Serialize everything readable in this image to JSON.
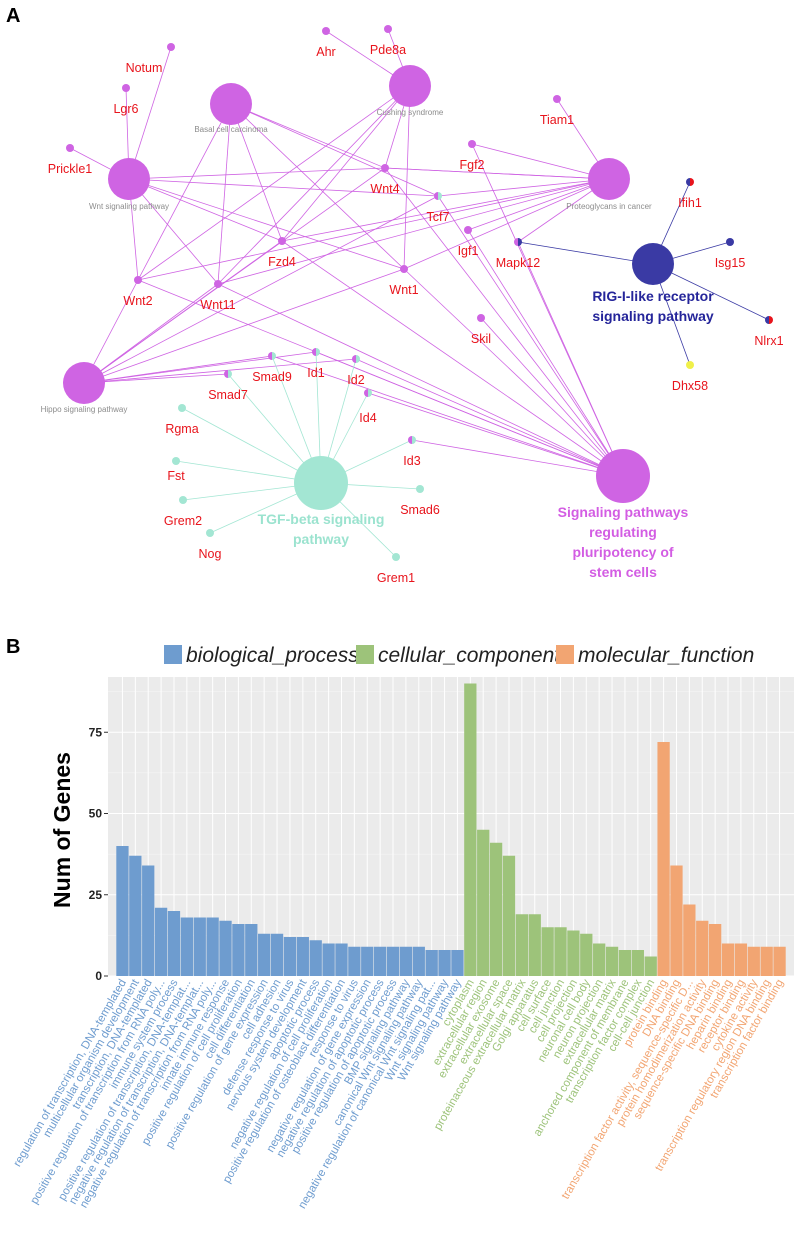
{
  "panel_a": {
    "letter": "A",
    "colors": {
      "pink": "#cf64e3",
      "blue": "#3a3aa4",
      "teal": "#a3e6d3",
      "label_red": "#e8141c",
      "hub_label_grey": "#8c8c8c"
    },
    "hubs": [
      {
        "id": "wnt",
        "label": "Wnt signaling pathway",
        "color": "pink",
        "style": "small"
      },
      {
        "id": "bcc",
        "label": "Basal cell carcinoma",
        "color": "pink",
        "style": "small"
      },
      {
        "id": "cush",
        "label": "Cushing syndrome",
        "color": "pink",
        "style": "small"
      },
      {
        "id": "prot",
        "label": "Proteoglycans in cancer",
        "color": "pink",
        "style": "small"
      },
      {
        "id": "hippo",
        "label": "Hippo signaling pathway",
        "color": "pink",
        "style": "small"
      },
      {
        "id": "rig",
        "label": [
          "RIG-I-like receptor",
          "signaling pathway"
        ],
        "color": "blue",
        "style": "big"
      },
      {
        "id": "tgf",
        "label": [
          "TGF-beta signaling",
          "pathway"
        ],
        "color": "teal",
        "style": "big"
      },
      {
        "id": "stem",
        "label": [
          "Signaling pathways",
          "regulating",
          "pluripotency of",
          "stem cells"
        ],
        "color": "pink",
        "style": "big"
      }
    ],
    "genes": [
      {
        "id": "Notum",
        "label": "Notum",
        "colors": [
          "pink"
        ]
      },
      {
        "id": "Lgr6",
        "label": "Lgr6",
        "colors": [
          "pink"
        ]
      },
      {
        "id": "Prickle1",
        "label": "Prickle1",
        "colors": [
          "pink"
        ]
      },
      {
        "id": "Ahr",
        "label": "Ahr",
        "colors": [
          "pink"
        ]
      },
      {
        "id": "Pde8a",
        "label": "Pde8a",
        "colors": [
          "pink"
        ]
      },
      {
        "id": "Tiam1",
        "label": "Tiam1",
        "colors": [
          "pink"
        ]
      },
      {
        "id": "Fgf2",
        "label": "Fgf2",
        "colors": [
          "pink"
        ]
      },
      {
        "id": "Wnt4",
        "label": "Wnt4",
        "colors": [
          "pink"
        ]
      },
      {
        "id": "Tcf7",
        "label": "Tcf7",
        "colors": [
          "pink",
          "teal"
        ]
      },
      {
        "id": "Fzd4",
        "label": "Fzd4",
        "colors": [
          "pink"
        ]
      },
      {
        "id": "Igf1",
        "label": "Igf1",
        "colors": [
          "pink"
        ]
      },
      {
        "id": "Wnt2",
        "label": "Wnt2",
        "colors": [
          "pink"
        ]
      },
      {
        "id": "Wnt11",
        "label": "Wnt11",
        "colors": [
          "pink"
        ]
      },
      {
        "id": "Wnt1",
        "label": "Wnt1",
        "colors": [
          "pink"
        ]
      },
      {
        "id": "Mapk12",
        "label": "Mapk12",
        "colors": [
          "pink",
          "blue"
        ]
      },
      {
        "id": "Ifih1",
        "label": "Ifih1",
        "colors": [
          "blue",
          "#e8141c"
        ]
      },
      {
        "id": "Isg15",
        "label": "Isg15",
        "colors": [
          "blue"
        ]
      },
      {
        "id": "Nlrx1",
        "label": "Nlrx1",
        "colors": [
          "blue",
          "#e8141c"
        ]
      },
      {
        "id": "Dhx58",
        "label": "Dhx58",
        "colors": [
          "#f0f04a"
        ]
      },
      {
        "id": "Skil",
        "label": "Skil",
        "colors": [
          "pink"
        ]
      },
      {
        "id": "Smad9",
        "label": "Smad9",
        "colors": [
          "pink",
          "teal"
        ]
      },
      {
        "id": "Id1",
        "label": "Id1",
        "colors": [
          "pink",
          "teal"
        ]
      },
      {
        "id": "Id2",
        "label": "Id2",
        "colors": [
          "pink",
          "teal"
        ]
      },
      {
        "id": "Smad7",
        "label": "Smad7",
        "colors": [
          "pink",
          "teal"
        ]
      },
      {
        "id": "Id4",
        "label": "Id4",
        "colors": [
          "pink",
          "teal"
        ]
      },
      {
        "id": "Id3",
        "label": "Id3",
        "colors": [
          "pink",
          "teal"
        ]
      },
      {
        "id": "Rgma",
        "label": "Rgma",
        "colors": [
          "teal"
        ]
      },
      {
        "id": "Fst",
        "label": "Fst",
        "colors": [
          "teal"
        ]
      },
      {
        "id": "Grem2",
        "label": "Grem2",
        "colors": [
          "teal"
        ]
      },
      {
        "id": "Nog",
        "label": "Nog",
        "colors": [
          "teal"
        ]
      },
      {
        "id": "Smad6",
        "label": "Smad6",
        "colors": [
          "teal"
        ]
      },
      {
        "id": "Grem1",
        "label": "Grem1",
        "colors": [
          "teal"
        ]
      }
    ],
    "edges": [
      [
        "wnt",
        "Notum"
      ],
      [
        "wnt",
        "Lgr6"
      ],
      [
        "wnt",
        "Prickle1"
      ],
      [
        "wnt",
        "Wnt4"
      ],
      [
        "wnt",
        "Tcf7"
      ],
      [
        "wnt",
        "Fzd4"
      ],
      [
        "wnt",
        "Wnt2"
      ],
      [
        "wnt",
        "Wnt11"
      ],
      [
        "wnt",
        "Wnt1"
      ],
      [
        "bcc",
        "Wnt4"
      ],
      [
        "bcc",
        "Tcf7"
      ],
      [
        "bcc",
        "Fzd4"
      ],
      [
        "bcc",
        "Wnt2"
      ],
      [
        "bcc",
        "Wnt11"
      ],
      [
        "bcc",
        "Wnt1"
      ],
      [
        "cush",
        "Ahr"
      ],
      [
        "cush",
        "Pde8a"
      ],
      [
        "cush",
        "Wnt4"
      ],
      [
        "cush",
        "Fzd4"
      ],
      [
        "cush",
        "Wnt2"
      ],
      [
        "cush",
        "Wnt11"
      ],
      [
        "cush",
        "Wnt1"
      ],
      [
        "prot",
        "Tiam1"
      ],
      [
        "prot",
        "Wnt4"
      ],
      [
        "prot",
        "Tcf7"
      ],
      [
        "prot",
        "Fzd4"
      ],
      [
        "prot",
        "Wnt2"
      ],
      [
        "prot",
        "Wnt11"
      ],
      [
        "prot",
        "Wnt1"
      ],
      [
        "prot",
        "Igf1"
      ],
      [
        "prot",
        "Mapk12"
      ],
      [
        "prot",
        "Fgf2"
      ],
      [
        "prot",
        "Wnt4"
      ],
      [
        "hippo",
        "Wnt4"
      ],
      [
        "hippo",
        "Tcf7"
      ],
      [
        "hippo",
        "Fzd4"
      ],
      [
        "hippo",
        "Wnt2"
      ],
      [
        "hippo",
        "Wnt11"
      ],
      [
        "hippo",
        "Wnt1"
      ],
      [
        "hippo",
        "Smad7"
      ],
      [
        "hippo",
        "Id1"
      ],
      [
        "hippo",
        "Id2"
      ],
      [
        "hippo",
        "Smad9"
      ],
      [
        "stem",
        "Wnt4"
      ],
      [
        "stem",
        "Tcf7"
      ],
      [
        "stem",
        "Fzd4"
      ],
      [
        "stem",
        "Wnt2"
      ],
      [
        "stem",
        "Wnt11"
      ],
      [
        "stem",
        "Wnt1"
      ],
      [
        "stem",
        "Igf1"
      ],
      [
        "stem",
        "Mapk12"
      ],
      [
        "stem",
        "Fgf2"
      ],
      [
        "stem",
        "Skil"
      ],
      [
        "stem",
        "Smad9"
      ],
      [
        "stem",
        "Id1"
      ],
      [
        "stem",
        "Id2"
      ],
      [
        "stem",
        "Id4"
      ],
      [
        "stem",
        "Id3"
      ],
      [
        "rig",
        "Mapk12"
      ],
      [
        "rig",
        "Ifih1"
      ],
      [
        "rig",
        "Isg15"
      ],
      [
        "rig",
        "Nlrx1"
      ],
      [
        "rig",
        "Dhx58"
      ],
      [
        "tgf",
        "Rgma"
      ],
      [
        "tgf",
        "Fst"
      ],
      [
        "tgf",
        "Grem2"
      ],
      [
        "tgf",
        "Nog"
      ],
      [
        "tgf",
        "Smad6"
      ],
      [
        "tgf",
        "Grem1"
      ],
      [
        "tgf",
        "Smad7"
      ],
      [
        "tgf",
        "Smad9"
      ],
      [
        "tgf",
        "Id1"
      ],
      [
        "tgf",
        "Id2"
      ],
      [
        "tgf",
        "Id4"
      ],
      [
        "tgf",
        "Id3"
      ]
    ]
  },
  "panel_b": {
    "letter": "B",
    "chart_data": {
      "type": "bar",
      "title": "",
      "xlabel": "",
      "ylabel": "Num of Genes",
      "ylim": [
        0,
        92
      ],
      "yticks": [
        0,
        25,
        50,
        75
      ],
      "grid": true,
      "legend": {
        "placement": "top",
        "entries": [
          {
            "name": "biological_process",
            "color": "#6e9ccf"
          },
          {
            "name": "cellular_component",
            "color": "#9dc37a"
          },
          {
            "name": "molecular_function",
            "color": "#f2a572"
          }
        ]
      },
      "categories": [
        {
          "label": "regulation of transcription, DNA-templated",
          "group": "biological_process",
          "value": 40
        },
        {
          "label": "multicellular organism development",
          "group": "biological_process",
          "value": 37
        },
        {
          "label": "transcription, DNA-templated",
          "group": "biological_process",
          "value": 34
        },
        {
          "label": "positive regulation of transcription from RNA poly...",
          "group": "biological_process",
          "value": 21
        },
        {
          "label": "immune system process",
          "group": "biological_process",
          "value": 20
        },
        {
          "label": "positive regulation of transcription, DNA-templat...",
          "group": "biological_process",
          "value": 18
        },
        {
          "label": "negative regulation of transcription, DNA-templat...",
          "group": "biological_process",
          "value": 18
        },
        {
          "label": "negative regulation of transcription from RNA poly...",
          "group": "biological_process",
          "value": 18
        },
        {
          "label": "innate immune response",
          "group": "biological_process",
          "value": 17
        },
        {
          "label": "positive regulation of cell proliferation",
          "group": "biological_process",
          "value": 16
        },
        {
          "label": "cell differentiation",
          "group": "biological_process",
          "value": 16
        },
        {
          "label": "positive regulation of gene expression",
          "group": "biological_process",
          "value": 13
        },
        {
          "label": "cell adhesion",
          "group": "biological_process",
          "value": 13
        },
        {
          "label": "defense response to virus",
          "group": "biological_process",
          "value": 12
        },
        {
          "label": "nervous system development",
          "group": "biological_process",
          "value": 12
        },
        {
          "label": "apoptotic process",
          "group": "biological_process",
          "value": 11
        },
        {
          "label": "negative regulation of cell proliferation",
          "group": "biological_process",
          "value": 10
        },
        {
          "label": "positive regulation of osteoblast differentiation",
          "group": "biological_process",
          "value": 10
        },
        {
          "label": "response to virus",
          "group": "biological_process",
          "value": 9
        },
        {
          "label": "negative regulation of gene expression",
          "group": "biological_process",
          "value": 9
        },
        {
          "label": "negative regulation of apoptotic process",
          "group": "biological_process",
          "value": 9
        },
        {
          "label": "positive regulation of apoptotic process",
          "group": "biological_process",
          "value": 9
        },
        {
          "label": "BMP signaling pathway",
          "group": "biological_process",
          "value": 9
        },
        {
          "label": "canonical Wnt signaling pathway",
          "group": "biological_process",
          "value": 9
        },
        {
          "label": "negative regulation of canonical Wnt signaling pat...",
          "group": "biological_process",
          "value": 8
        },
        {
          "label": "Wnt signaling pathway",
          "group": "biological_process",
          "value": 8
        },
        {
          "label": "Wnt signaling pathway",
          "group": "biological_process",
          "value": 8
        },
        {
          "label": "cytoplasm",
          "group": "cellular_component",
          "value": 90
        },
        {
          "label": "extracellular region",
          "group": "cellular_component",
          "value": 45
        },
        {
          "label": "extracellular exosome",
          "group": "cellular_component",
          "value": 41
        },
        {
          "label": "extracellular space",
          "group": "cellular_component",
          "value": 37
        },
        {
          "label": "proteinaceous extracellular matrix",
          "group": "cellular_component",
          "value": 19
        },
        {
          "label": "Golgi apparatus",
          "group": "cellular_component",
          "value": 19
        },
        {
          "label": "cell surface",
          "group": "cellular_component",
          "value": 15
        },
        {
          "label": "cell junction",
          "group": "cellular_component",
          "value": 15
        },
        {
          "label": "cell projection",
          "group": "cellular_component",
          "value": 14
        },
        {
          "label": "neuronal cell body",
          "group": "cellular_component",
          "value": 13
        },
        {
          "label": "neuron projection",
          "group": "cellular_component",
          "value": 10
        },
        {
          "label": "extracellular matrix",
          "group": "cellular_component",
          "value": 9
        },
        {
          "label": "anchored component of membrane",
          "group": "cellular_component",
          "value": 8
        },
        {
          "label": "transcription factor complex",
          "group": "cellular_component",
          "value": 8
        },
        {
          "label": "cell-cell junction",
          "group": "cellular_component",
          "value": 6
        },
        {
          "label": "protein binding",
          "group": "molecular_function",
          "value": 72
        },
        {
          "label": "DNA binding",
          "group": "molecular_function",
          "value": 34
        },
        {
          "label": "transcription factor activity, sequence-specific D...",
          "group": "molecular_function",
          "value": 22
        },
        {
          "label": "protein homodimerization activity",
          "group": "molecular_function",
          "value": 17
        },
        {
          "label": "sequence-specific DNA binding",
          "group": "molecular_function",
          "value": 16
        },
        {
          "label": "heparin binding",
          "group": "molecular_function",
          "value": 10
        },
        {
          "label": "receptor binding",
          "group": "molecular_function",
          "value": 10
        },
        {
          "label": "cytokine activity",
          "group": "molecular_function",
          "value": 9
        },
        {
          "label": "transcription regulatory region DNA binding",
          "group": "molecular_function",
          "value": 9
        },
        {
          "label": "transcription factor binding",
          "group": "molecular_function",
          "value": 9
        }
      ]
    }
  }
}
